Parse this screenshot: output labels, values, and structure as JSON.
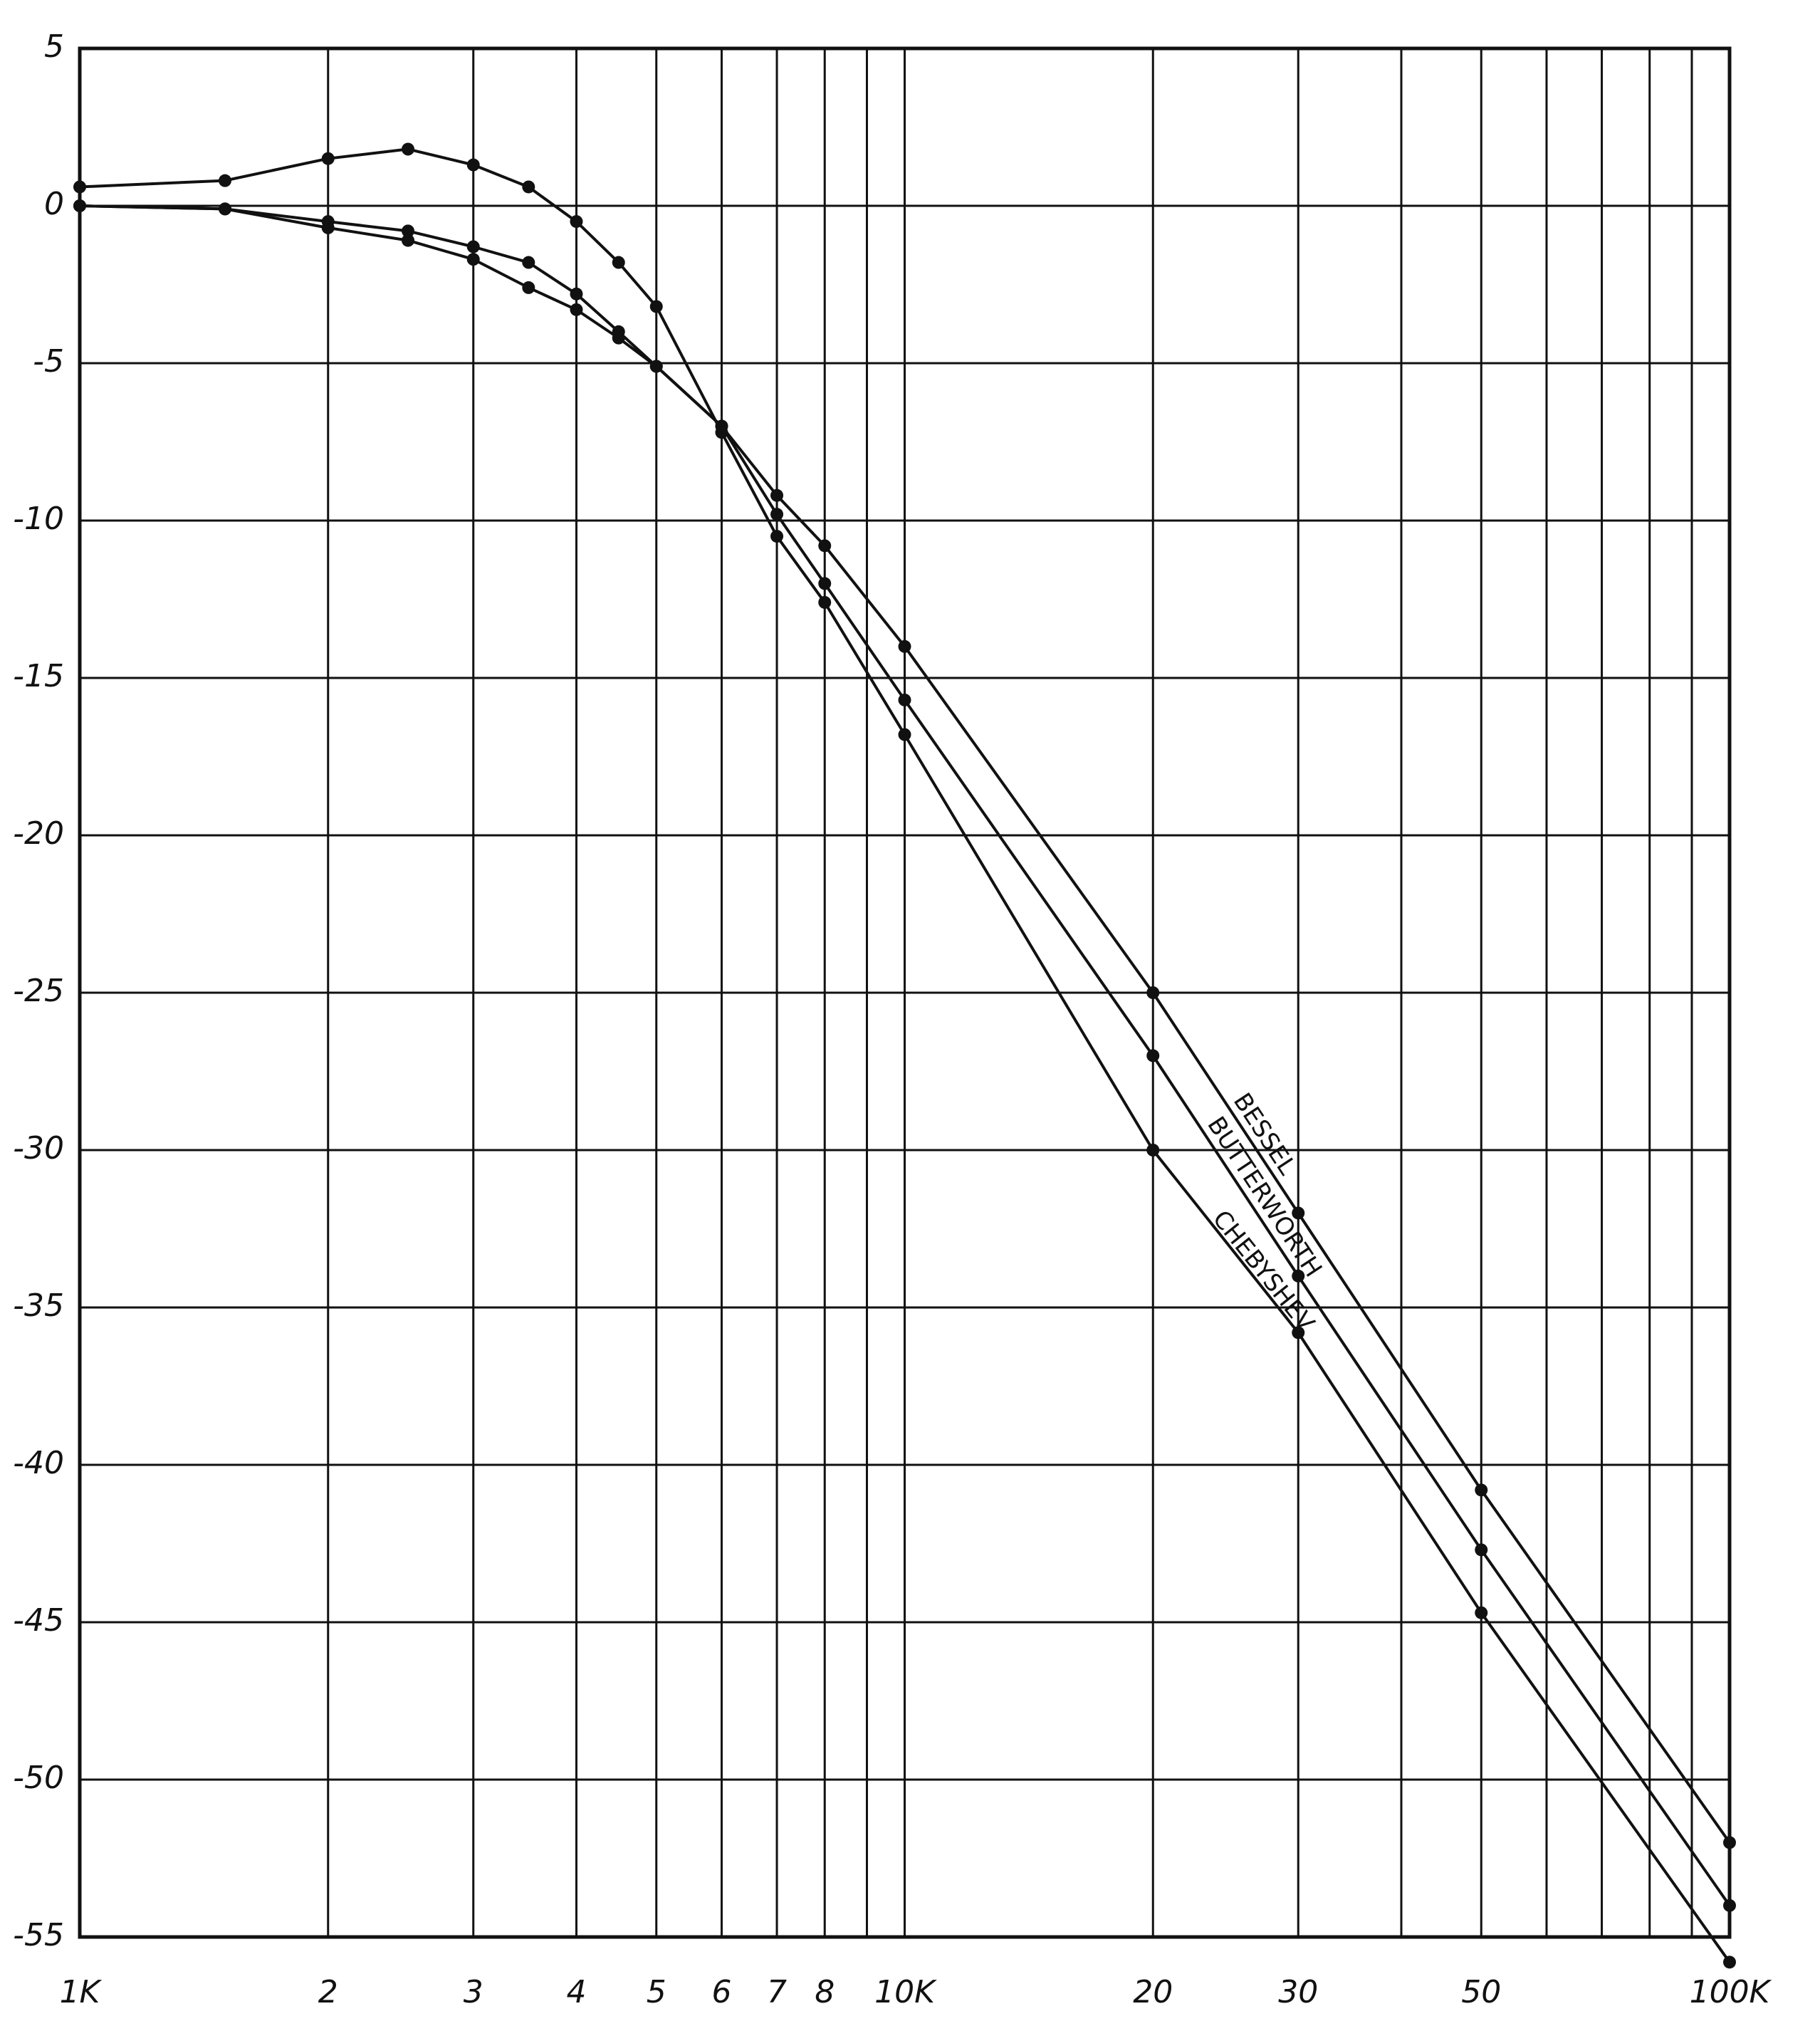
{
  "chart_data": {
    "type": "line",
    "x": [
      1000,
      1500,
      2000,
      2500,
      3000,
      3500,
      4000,
      4500,
      5000,
      6000,
      7000,
      8000,
      10000,
      20000,
      30000,
      50000,
      100000
    ],
    "series": [
      {
        "name": "BESSEL",
        "color": "#111111",
        "values": [
          0,
          -0.1,
          -0.7,
          -1.1,
          -1.7,
          -2.6,
          -3.3,
          -4.2,
          -5.1,
          -7,
          -9.2,
          -10.8,
          -14,
          -25,
          -32,
          -40.8,
          -52
        ]
      },
      {
        "name": "BUTTERWORTH",
        "color": "#111111",
        "values": [
          0,
          -0.1,
          -0.5,
          -0.8,
          -1.3,
          -1.8,
          -2.8,
          -4.0,
          -5.1,
          -7,
          -9.8,
          -12,
          -15.7,
          -27,
          -34,
          -42.7,
          -54
        ]
      },
      {
        "name": "CHEBYSHEV",
        "color": "#111111",
        "values": [
          0.6,
          0.8,
          1.5,
          1.8,
          1.3,
          0.6,
          -0.5,
          -1.8,
          -3.2,
          -7.2,
          -10.5,
          -12.6,
          -16.8,
          -30,
          -35.8,
          -44.7,
          -55.8
        ]
      }
    ],
    "xlog": true,
    "xlim": [
      1000,
      100000
    ],
    "xticks": [
      {
        "value": 1000,
        "label": "1K"
      },
      {
        "value": 2000,
        "label": "2"
      },
      {
        "value": 3000,
        "label": "3"
      },
      {
        "value": 4000,
        "label": "4"
      },
      {
        "value": 5000,
        "label": "5"
      },
      {
        "value": 6000,
        "label": "6"
      },
      {
        "value": 7000,
        "label": "7"
      },
      {
        "value": 8000,
        "label": "8"
      },
      {
        "value": 10000,
        "label": "10K"
      },
      {
        "value": 20000,
        "label": "20"
      },
      {
        "value": 30000,
        "label": "30"
      },
      {
        "value": 50000,
        "label": "50"
      },
      {
        "value": 100000,
        "label": "100K"
      }
    ],
    "xminor_ticks": [
      9000,
      40000,
      60000,
      70000,
      80000,
      90000
    ],
    "ylim": [
      -55,
      5
    ],
    "yticks": [
      5,
      0,
      -5,
      -10,
      -15,
      -20,
      -25,
      -30,
      -35,
      -40,
      -45,
      -50,
      -55
    ],
    "grid": true
  }
}
